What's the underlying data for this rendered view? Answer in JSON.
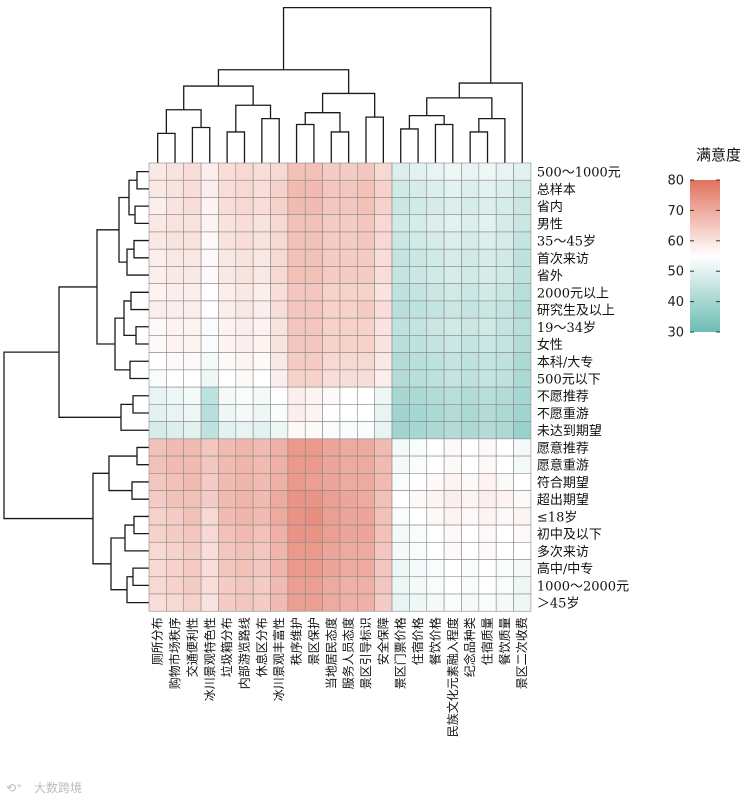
{
  "chart_data": {
    "type": "heatmap",
    "title": "",
    "legend_title": "满意度",
    "colorbar": {
      "min": 30,
      "max": 80,
      "ticks": [
        80,
        70,
        60,
        50,
        40,
        30
      ],
      "low_color": "#6cbcb4",
      "mid_color": "#ffffff",
      "high_color": "#e2725e"
    },
    "rows": [
      "500～1000元",
      "总样本",
      "省内",
      "男性",
      "35～45岁",
      "首次来访",
      "省外",
      "2000元以上",
      "研究生及以上",
      "19～34岁",
      "女性",
      "本科/大专",
      "500元以下",
      "不愿推荐",
      "不愿重游",
      "未达到期望",
      "愿意推荐",
      "愿意重游",
      "符合期望",
      "超出期望",
      "≤18岁",
      "初中及以下",
      "多次来访",
      "高中/中专",
      "1000～2000元",
      "＞45岁"
    ],
    "columns": [
      "厕所分布",
      "购物市场秩序",
      "交通便利性",
      "冰川景观特色性",
      "垃圾箱分布",
      "内部游览路线",
      "休息区分布",
      "冰川景观丰富性",
      "秩序维护",
      "景区保护",
      "当地居民态度",
      "服务人员态度",
      "景区引导标识",
      "安全保障",
      "景区门票价格",
      "住宿价格",
      "餐饮价格",
      "民族文化元素融入程度",
      "纪念品种类",
      "住宿质量",
      "餐饮质量",
      "景区二次收费"
    ],
    "values": [
      [
        59,
        60,
        61,
        58,
        61,
        62,
        61,
        62,
        66,
        66,
        64,
        64,
        65,
        62,
        49,
        50,
        51,
        52,
        51,
        52,
        51,
        50
      ],
      [
        59,
        60,
        61,
        58,
        61,
        62,
        61,
        63,
        67,
        67,
        65,
        65,
        66,
        63,
        47,
        48,
        49,
        50,
        49,
        50,
        49,
        47
      ],
      [
        58,
        60,
        61,
        57,
        61,
        62,
        61,
        63,
        67,
        67,
        65,
        65,
        66,
        63,
        46,
        47,
        48,
        49,
        48,
        49,
        48,
        46
      ],
      [
        59,
        60,
        60,
        57,
        60,
        61,
        60,
        62,
        66,
        66,
        64,
        64,
        65,
        62,
        47,
        48,
        49,
        50,
        49,
        50,
        48,
        46
      ],
      [
        59,
        60,
        60,
        56,
        60,
        61,
        60,
        62,
        66,
        66,
        64,
        64,
        65,
        62,
        46,
        47,
        48,
        49,
        48,
        49,
        48,
        45
      ],
      [
        58,
        59,
        59,
        56,
        59,
        60,
        59,
        62,
        66,
        66,
        64,
        64,
        64,
        61,
        45,
        46,
        47,
        48,
        47,
        48,
        47,
        44
      ],
      [
        58,
        59,
        59,
        56,
        59,
        60,
        59,
        62,
        66,
        66,
        64,
        64,
        64,
        61,
        45,
        46,
        47,
        48,
        47,
        48,
        47,
        44
      ],
      [
        57,
        58,
        58,
        55,
        58,
        59,
        58,
        61,
        65,
        65,
        63,
        63,
        63,
        60,
        44,
        45,
        46,
        47,
        46,
        47,
        46,
        43
      ],
      [
        58,
        58,
        58,
        55,
        58,
        59,
        58,
        61,
        65,
        65,
        63,
        63,
        64,
        61,
        43,
        44,
        45,
        46,
        45,
        46,
        45,
        42
      ],
      [
        56,
        57,
        57,
        54,
        57,
        58,
        57,
        60,
        65,
        65,
        63,
        63,
        63,
        60,
        44,
        45,
        46,
        47,
        46,
        47,
        45,
        43
      ],
      [
        56,
        57,
        57,
        54,
        57,
        58,
        57,
        60,
        65,
        65,
        63,
        63,
        63,
        60,
        43,
        44,
        45,
        46,
        45,
        46,
        45,
        42
      ],
      [
        55,
        56,
        56,
        53,
        56,
        57,
        56,
        59,
        64,
        64,
        62,
        62,
        62,
        59,
        42,
        43,
        44,
        45,
        44,
        45,
        44,
        41
      ],
      [
        54,
        55,
        55,
        52,
        55,
        56,
        55,
        58,
        63,
        63,
        61,
        61,
        61,
        58,
        42,
        43,
        44,
        45,
        44,
        45,
        44,
        41
      ],
      [
        51,
        52,
        53,
        44,
        53,
        54,
        53,
        55,
        58,
        57,
        56,
        55,
        55,
        52,
        40,
        41,
        42,
        43,
        42,
        43,
        42,
        40
      ],
      [
        50,
        51,
        52,
        43,
        52,
        53,
        52,
        54,
        58,
        57,
        55,
        55,
        55,
        51,
        39,
        40,
        41,
        42,
        41,
        42,
        41,
        39
      ],
      [
        48,
        49,
        50,
        44,
        50,
        51,
        50,
        52,
        56,
        56,
        54,
        54,
        54,
        51,
        39,
        40,
        41,
        42,
        41,
        42,
        41,
        38
      ],
      [
        66,
        67,
        67,
        65,
        67,
        68,
        67,
        69,
        73,
        73,
        71,
        70,
        70,
        67,
        53,
        54,
        55,
        56,
        55,
        56,
        55,
        53
      ],
      [
        66,
        67,
        67,
        65,
        67,
        68,
        67,
        69,
        73,
        73,
        71,
        70,
        70,
        67,
        53,
        54,
        55,
        56,
        55,
        56,
        55,
        53
      ],
      [
        65,
        66,
        67,
        64,
        67,
        68,
        67,
        69,
        73,
        72,
        71,
        70,
        70,
        67,
        54,
        55,
        56,
        57,
        56,
        57,
        56,
        55
      ],
      [
        64,
        66,
        66,
        64,
        67,
        68,
        67,
        70,
        74,
        74,
        72,
        71,
        70,
        66,
        55,
        56,
        57,
        58,
        57,
        58,
        57,
        56
      ],
      [
        63,
        64,
        66,
        62,
        67,
        68,
        67,
        70,
        74,
        75,
        72,
        71,
        71,
        66,
        54,
        55,
        56,
        57,
        56,
        57,
        56,
        57
      ],
      [
        63,
        64,
        65,
        62,
        66,
        67,
        66,
        69,
        74,
        74,
        72,
        71,
        71,
        66,
        53,
        54,
        55,
        56,
        55,
        56,
        55,
        56
      ],
      [
        62,
        63,
        64,
        61,
        65,
        66,
        65,
        68,
        73,
        73,
        71,
        70,
        70,
        65,
        53,
        54,
        55,
        56,
        55,
        56,
        55,
        55
      ],
      [
        62,
        63,
        64,
        61,
        65,
        66,
        65,
        68,
        73,
        73,
        71,
        70,
        70,
        65,
        52,
        53,
        54,
        55,
        54,
        55,
        54,
        53
      ],
      [
        62,
        63,
        64,
        61,
        64,
        65,
        64,
        67,
        72,
        72,
        70,
        69,
        69,
        65,
        52,
        53,
        54,
        55,
        54,
        55,
        54,
        52
      ],
      [
        61,
        62,
        63,
        60,
        64,
        65,
        64,
        67,
        72,
        72,
        70,
        69,
        69,
        64,
        51,
        52,
        53,
        54,
        53,
        54,
        53,
        52
      ]
    ],
    "row_dendrogram": [
      "500～1000元",
      "总样本",
      "省内",
      "男性",
      "35～45岁",
      "首次来访",
      "省外",
      "2000元以上",
      "研究生及以上",
      "19～34岁",
      "女性",
      "本科/大专",
      "500元以下",
      "不愿推荐",
      "不愿重游",
      "未达到期望",
      "愿意推荐",
      "愿意重游",
      "符合期望",
      "超出期望",
      "≤18岁",
      "初中及以下",
      "多次来访",
      "高中/中专",
      "1000～2000元",
      "＞45岁"
    ],
    "column_dendrogram": [
      "厕所分布",
      "购物市场秩序",
      "交通便利性",
      "冰川景观特色性",
      "垃圾箱分布",
      "内部游览路线",
      "休息区分布",
      "冰川景观丰富性",
      "秩序维护",
      "景区保护",
      "当地居民态度",
      "服务人员态度",
      "景区引导标识",
      "安全保障",
      "景区门票价格",
      "住宿价格",
      "餐饮价格",
      "民族文化元素融入程度",
      "纪念品种类",
      "住宿质量",
      "餐饮质量",
      "景区二次收费"
    ]
  },
  "watermark": "大数跨境"
}
